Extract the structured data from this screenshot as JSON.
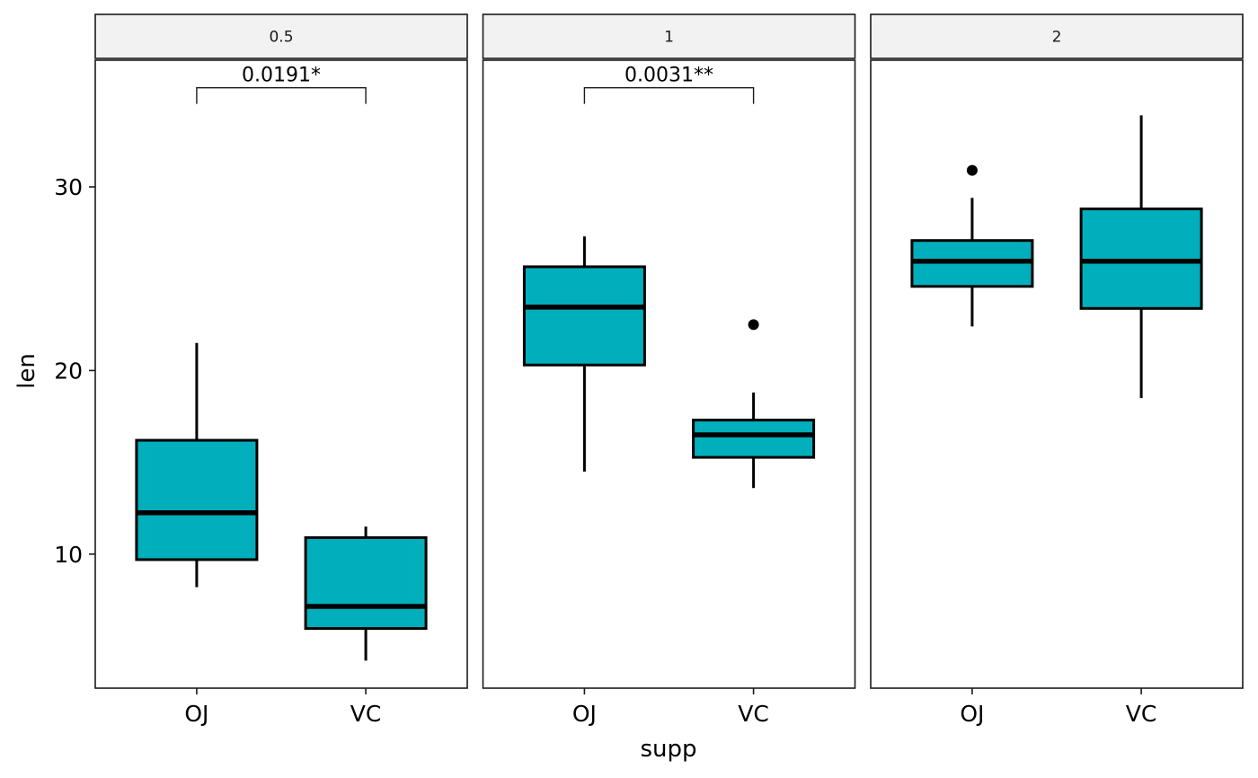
{
  "chart_data": {
    "type": "boxplot",
    "title": "",
    "xlabel": "supp",
    "ylabel": "len",
    "ylim": [
      2.7,
      36.9
    ],
    "yticks": [
      10,
      20,
      30
    ],
    "ytick_labels": [
      "10",
      "20",
      "30"
    ],
    "categories": [
      "OJ",
      "VC"
    ],
    "fill_color": "#00AFBB",
    "grid": false,
    "facet_variable": "dose",
    "panels": [
      {
        "strip_label": "0.5",
        "boxes": [
          {
            "category": "OJ",
            "whisker_low": 8.2,
            "q1": 9.7,
            "median": 12.25,
            "q3": 16.2,
            "whisker_high": 21.5,
            "outliers": []
          },
          {
            "category": "VC",
            "whisker_low": 4.2,
            "q1": 5.95,
            "median": 7.15,
            "q3": 10.9,
            "whisker_high": 11.5,
            "outliers": []
          }
        ],
        "comparison": {
          "group1": "OJ",
          "group2": "VC",
          "label": "0.0191*",
          "y": 35.4
        }
      },
      {
        "strip_label": "1",
        "boxes": [
          {
            "category": "OJ",
            "whisker_low": 14.5,
            "q1": 20.3,
            "median": 23.45,
            "q3": 25.65,
            "whisker_high": 27.3,
            "outliers": []
          },
          {
            "category": "VC",
            "whisker_low": 13.6,
            "q1": 15.27,
            "median": 16.5,
            "q3": 17.3,
            "whisker_high": 18.8,
            "outliers": [
              22.5
            ]
          }
        ],
        "comparison": {
          "group1": "OJ",
          "group2": "VC",
          "label": "0.0031**",
          "y": 35.4
        }
      },
      {
        "strip_label": "2",
        "boxes": [
          {
            "category": "OJ",
            "whisker_low": 22.4,
            "q1": 24.58,
            "median": 25.95,
            "q3": 27.08,
            "whisker_high": 29.4,
            "outliers": [
              30.9
            ]
          },
          {
            "category": "VC",
            "whisker_low": 18.5,
            "q1": 23.38,
            "median": 25.95,
            "q3": 28.8,
            "whisker_high": 33.9,
            "outliers": []
          }
        ],
        "comparison": null
      }
    ]
  }
}
